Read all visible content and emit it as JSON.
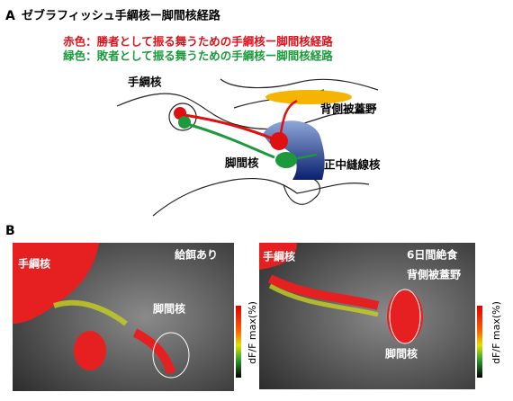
{
  "panel_a": {
    "label": "A",
    "title": "ゼブラフィッシュ手綱核ー脚間核経路",
    "legend": {
      "red": "赤色：勝者として振る舞うための手綱核ー脚間核経路",
      "green": "緑色：敗者として振る舞うための手綱核ー脚間核経路"
    },
    "nodes": [
      "手綱核",
      "背側被蓋野",
      "脚間核",
      "正中縫線核"
    ]
  },
  "panel_b": {
    "label": "B",
    "images": [
      {
        "labels": [
          "手綱核",
          "給餌あり",
          "脚間核"
        ],
        "colorbar_label": "dF/F max(%)"
      },
      {
        "labels": [
          "手綱核",
          "6日間絶食",
          "背側被蓋野",
          "脚間核"
        ],
        "colorbar_label": "dF/F max(%)"
      }
    ]
  }
}
